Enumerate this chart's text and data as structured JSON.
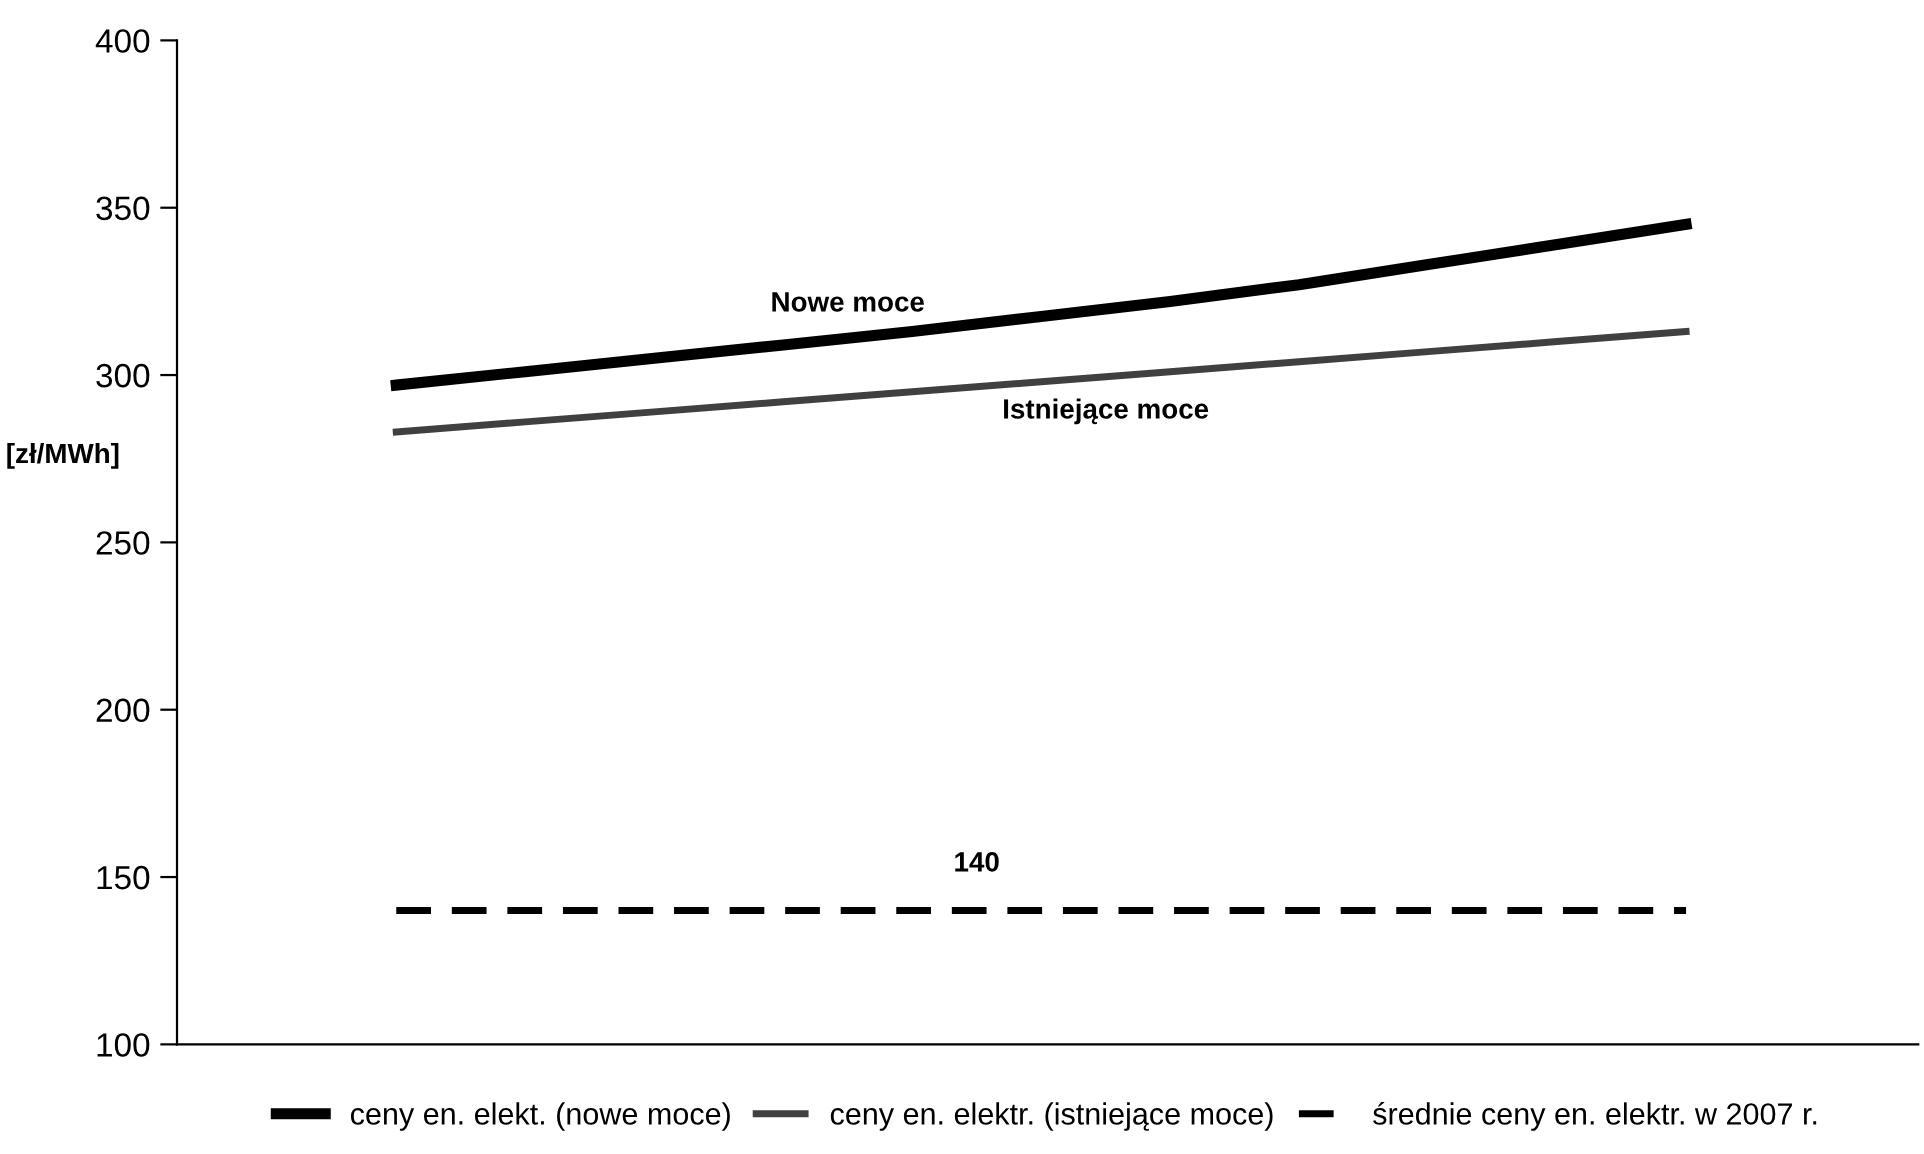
{
  "chart_data": {
    "type": "line",
    "ylabel": "[zł/MWh]",
    "categories": [
      null,
      null,
      null,
      null,
      null,
      null,
      null,
      null,
      null,
      null,
      null
    ],
    "series": [
      {
        "name": "ceny en. elekt. (nowe moce)",
        "color": "#000000",
        "line_style": "solid",
        "values": [
          297,
          301,
          305,
          309,
          313,
          317.5,
          322,
          327,
          333,
          339,
          345
        ]
      },
      {
        "name": "ceny en. elektr. (istniejące moce)",
        "color": "#404040",
        "line_style": "solid",
        "values": [
          283,
          286,
          289,
          292,
          295,
          298,
          301,
          304,
          307,
          310,
          313
        ]
      },
      {
        "name": "średnie ceny en. elektr. w 2007 r.",
        "color": "#000000",
        "line_style": "dashed",
        "values": [
          140,
          140,
          140,
          140,
          140,
          140,
          140,
          140,
          140,
          140,
          140
        ]
      }
    ],
    "annotations": [
      "Nowe moce",
      "Istniejące moce",
      "140"
    ],
    "ylim": [
      100,
      400
    ],
    "yticks": [
      100,
      150,
      200,
      250,
      300,
      350,
      400
    ],
    "grid": false,
    "legend": "bottom",
    "marker": "none",
    "tick_labels": "y"
  }
}
